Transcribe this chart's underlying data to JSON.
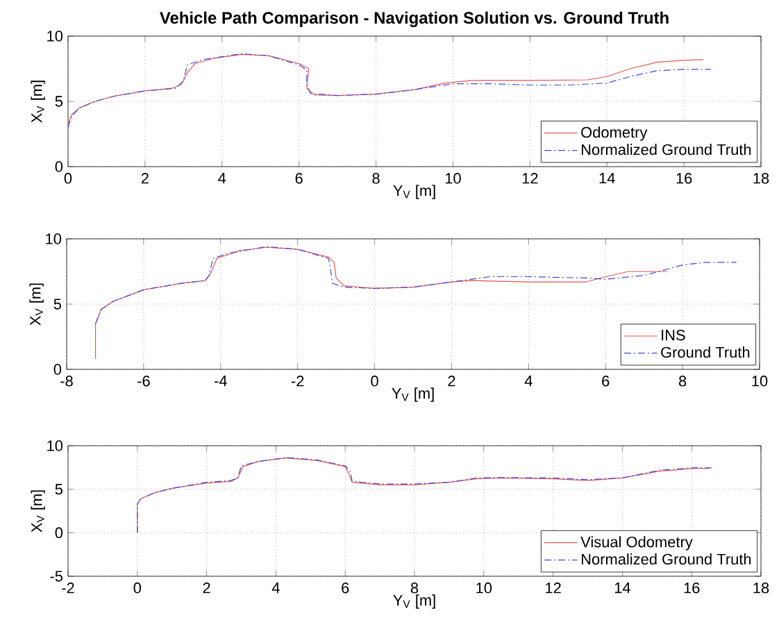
{
  "chart_data": [
    {
      "type": "line",
      "title": "Vehicle Path Comparison - Navigation Solution vs. Ground Truth",
      "xlabel": "Y$_{V}$ [m]",
      "ylabel": "X$_{V}$ [m]",
      "xlim": [
        0,
        18
      ],
      "ylim": [
        0,
        10
      ],
      "xticks": [
        0,
        2,
        4,
        6,
        8,
        10,
        12,
        14,
        16,
        18
      ],
      "yticks": [
        0,
        5,
        10
      ],
      "grid": true,
      "legend": "bottom right",
      "series": [
        {
          "name": "Odometry",
          "color": "#e05555",
          "line_style": "solid",
          "x": [
            0,
            0.1,
            0.3,
            0.7,
            1.2,
            2,
            2.7,
            2.95,
            3.1,
            3.3,
            3.8,
            4.5,
            5.2,
            6.0,
            6.25,
            6.2,
            6.4,
            7,
            8,
            9,
            9.8,
            10.5,
            12,
            13.5,
            14,
            14.6,
            15.3,
            16,
            16.5
          ],
          "values": [
            3.2,
            4.0,
            4.5,
            5.0,
            5.4,
            5.8,
            6.0,
            6.3,
            7.2,
            7.9,
            8.3,
            8.6,
            8.5,
            7.9,
            7.5,
            6.0,
            5.5,
            5.45,
            5.55,
            5.9,
            6.4,
            6.6,
            6.6,
            6.65,
            6.9,
            7.5,
            8.0,
            8.15,
            8.2
          ]
        },
        {
          "name": "Normalized Ground Truth",
          "color": "#4545d5",
          "line_style": "dashdot",
          "x": [
            0,
            0.1,
            0.3,
            0.7,
            1.2,
            2,
            2.8,
            3.0,
            3.1,
            3.5,
            4.5,
            5.2,
            6.0,
            6.2,
            6.2,
            6.3,
            7,
            8,
            9,
            10,
            11,
            12,
            13,
            14,
            14.6,
            15.3,
            16,
            16.7
          ],
          "values": [
            3.0,
            3.9,
            4.5,
            5.0,
            5.4,
            5.8,
            6.0,
            6.6,
            7.8,
            8.2,
            8.65,
            8.5,
            7.8,
            7.4,
            6.3,
            5.6,
            5.45,
            5.55,
            5.9,
            6.35,
            6.35,
            6.25,
            6.25,
            6.4,
            6.9,
            7.35,
            7.45,
            7.45
          ]
        }
      ]
    },
    {
      "type": "line",
      "xlabel": "Y$_{V}$ [m]",
      "ylabel": "X$_{V}$ [m]",
      "xlim": [
        -8,
        10
      ],
      "ylim": [
        0,
        10
      ],
      "xticks": [
        -8,
        -6,
        -4,
        -2,
        0,
        2,
        4,
        6,
        8,
        10
      ],
      "yticks": [
        0,
        5,
        10
      ],
      "grid": true,
      "legend": "bottom right",
      "series": [
        {
          "name": "INS",
          "color": "#e05555",
          "line_style": "solid",
          "x": [
            -7.25,
            -7.25,
            -7.1,
            -6.8,
            -6,
            -5,
            -4.4,
            -4.25,
            -4.1,
            -3.5,
            -2.8,
            -2,
            -1.2,
            -1.05,
            -1.0,
            -0.8,
            0,
            1,
            2,
            2.5,
            4,
            5.5,
            6,
            6.6,
            7.6
          ],
          "values": [
            0.8,
            3.5,
            4.6,
            5.2,
            6.1,
            6.6,
            6.8,
            7.4,
            8.5,
            9.1,
            9.35,
            9.2,
            8.6,
            8.2,
            7.0,
            6.4,
            6.2,
            6.3,
            6.7,
            6.8,
            6.7,
            6.7,
            7.1,
            7.5,
            7.5
          ]
        },
        {
          "name": "Ground Truth",
          "color": "#4545d5",
          "line_style": "dashdot",
          "x": [
            -7.25,
            -7.1,
            -6.8,
            -6,
            -5,
            -4.4,
            -4.3,
            -4.2,
            -3.8,
            -2.8,
            -2,
            -1.2,
            -1.15,
            -1.1,
            -0.8,
            0,
            1,
            2,
            3,
            4,
            5.5,
            6,
            7,
            8,
            8.6,
            9.4
          ],
          "values": [
            3.5,
            4.6,
            5.2,
            6.1,
            6.6,
            6.8,
            7.2,
            8.5,
            8.9,
            9.4,
            9.2,
            8.5,
            7.8,
            6.6,
            6.3,
            6.2,
            6.3,
            6.7,
            7.1,
            7.1,
            7.0,
            6.9,
            7.2,
            8.0,
            8.2,
            8.2
          ]
        }
      ]
    },
    {
      "type": "line",
      "xlabel": "Y$_{V}$ [m]",
      "ylabel": "X$_{V}$ [m]",
      "xlim": [
        -2,
        18
      ],
      "ylim": [
        -5,
        10
      ],
      "xticks": [
        -2,
        0,
        2,
        4,
        6,
        8,
        10,
        12,
        14,
        16,
        18
      ],
      "yticks": [
        -5,
        0,
        5,
        10
      ],
      "grid": true,
      "legend": "bottom right",
      "series": [
        {
          "name": "Visual Odometry",
          "color": "#e05555",
          "line_style": "solid",
          "x": [
            0,
            0,
            0.1,
            0.5,
            1,
            2,
            2.7,
            2.9,
            3.05,
            3.5,
            4.3,
            5.2,
            6,
            6.1,
            6.2,
            7,
            8,
            9,
            9.8,
            10.5,
            12,
            13,
            14,
            15.1,
            15.5,
            16,
            16.5
          ],
          "values": [
            0,
            3.3,
            3.9,
            4.6,
            5.1,
            5.7,
            5.9,
            6.3,
            7.6,
            8.2,
            8.6,
            8.3,
            7.6,
            6.8,
            5.8,
            5.5,
            5.5,
            5.8,
            6.2,
            6.3,
            6.2,
            6.0,
            6.3,
            7.1,
            7.2,
            7.4,
            7.4
          ]
        },
        {
          "name": "Normalized Ground Truth",
          "color": "#4545d5",
          "line_style": "dashdot",
          "x": [
            0,
            0,
            0.1,
            0.5,
            1,
            2,
            2.7,
            2.9,
            3.0,
            3.5,
            4.3,
            5.2,
            6,
            6.15,
            6.2,
            7,
            8,
            9,
            9.8,
            10.5,
            12,
            13,
            14,
            15.1,
            15.5,
            16,
            16.6
          ],
          "values": [
            0,
            3.3,
            3.9,
            4.6,
            5.1,
            5.8,
            6.0,
            6.3,
            7.7,
            8.2,
            8.65,
            8.35,
            7.7,
            7.0,
            5.9,
            5.6,
            5.6,
            5.8,
            6.3,
            6.35,
            6.3,
            6.1,
            6.3,
            7.2,
            7.3,
            7.45,
            7.45
          ]
        }
      ]
    }
  ]
}
